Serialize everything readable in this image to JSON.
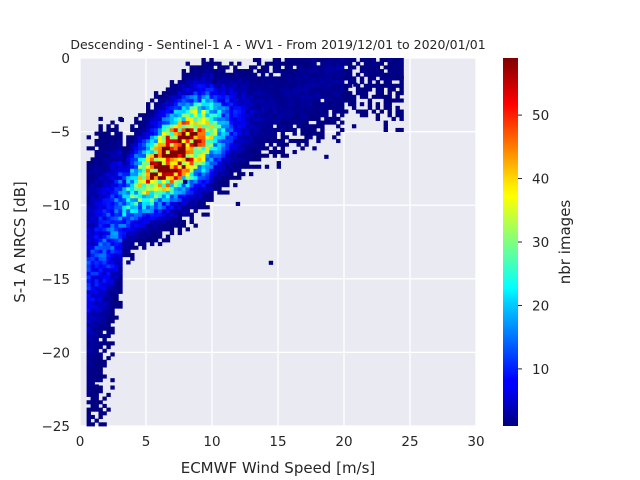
{
  "chart_data": {
    "type": "heatmap",
    "title": "Descending - Sentinel-1 A - WV1 - From 2019/12/01 to 2020/01/01",
    "xlabel": "ECMWF Wind Speed [m/s]",
    "ylabel": "S-1 A NRCS [dB]",
    "xlim": [
      0,
      30
    ],
    "ylim": [
      -25,
      0
    ],
    "xticks": [
      0,
      5,
      10,
      15,
      20,
      25,
      30
    ],
    "xtick_labels": [
      "0",
      "5",
      "10",
      "15",
      "20",
      "25",
      "30"
    ],
    "yticks": [
      0,
      -5,
      -10,
      -15,
      -20,
      -25
    ],
    "ytick_labels": [
      "0",
      "−5",
      "−10",
      "−15",
      "−20",
      "−25"
    ],
    "grid": true,
    "background": "#eaeaf2",
    "colormap": "jet",
    "colorbar": {
      "label": "nbr images",
      "range": [
        1,
        59
      ],
      "ticks": [
        10,
        20,
        30,
        40,
        50
      ],
      "tick_labels": [
        "10",
        "20",
        "30",
        "40",
        "50"
      ]
    },
    "bin_size": {
      "wind_speed": 0.3,
      "nrcs_db": 0.25
    },
    "density_model": {
      "ridge": [
        [
          0,
          -14
        ],
        [
          2,
          -11.5
        ],
        [
          4,
          -8.8
        ],
        [
          6,
          -7.2
        ],
        [
          7.5,
          -6.2
        ],
        [
          9,
          -5.3
        ],
        [
          11,
          -4.5
        ],
        [
          13,
          -3.8
        ],
        [
          15,
          -3.2
        ],
        [
          17,
          -2.3
        ],
        [
          19,
          -1.2
        ],
        [
          21,
          -0.8
        ],
        [
          23,
          -0.8
        ]
      ],
      "peak_wind_speed": 7.2,
      "peak_nrcs_db": -6.3,
      "peak_count": 58
    },
    "outliers": [
      [
        14.3,
        -13.9
      ],
      [
        11.8,
        -9.9
      ],
      [
        24.2,
        -1.3
      ],
      [
        18.5,
        -6.7
      ],
      [
        3.0,
        -4.2
      ],
      [
        2.4,
        -5.7
      ],
      [
        10.0,
        -1.6
      ],
      [
        20.7,
        -1.8
      ],
      [
        1.1,
        -22.3
      ],
      [
        7.8,
        -8.4
      ]
    ]
  }
}
